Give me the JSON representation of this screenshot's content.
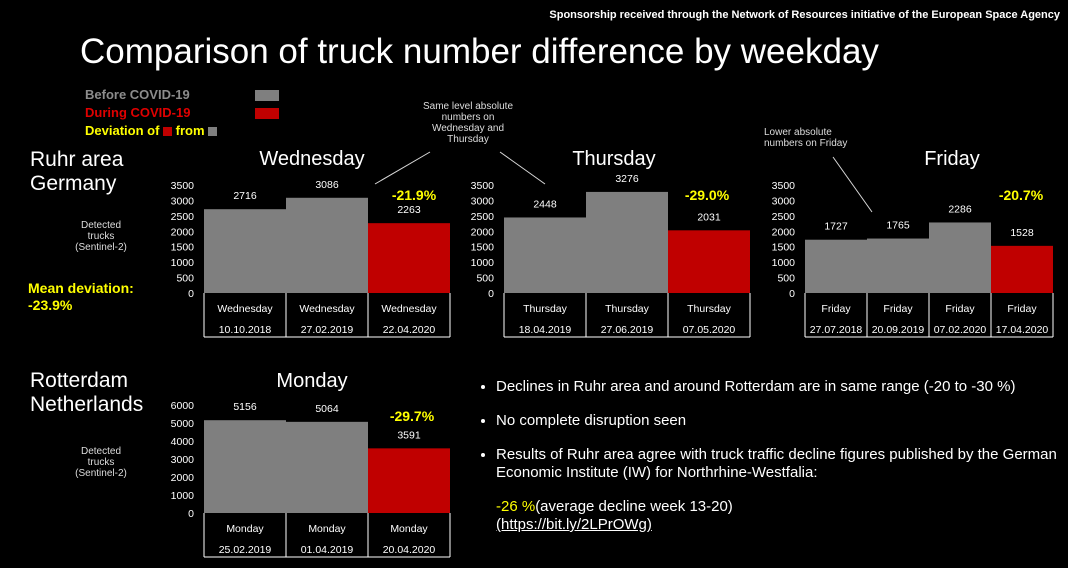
{
  "sponsor_text": "Sponsorship received through the Network of Resources initiative of the European Space Agency",
  "title": "Comparison of truck number difference by weekday",
  "legend": {
    "before_label": "Before COVID-19",
    "during_label": "During COVID-19",
    "deviation_prefix": "Deviation of",
    "deviation_mid": "from",
    "before_color": "#7f7f7f",
    "during_color": "#c00000",
    "deviation_color": "#ffff00"
  },
  "regions": {
    "ruhr": {
      "name_line1": "Ruhr area",
      "name_line2": "Germany",
      "detected_line1": "Detected",
      "detected_line2": "trucks",
      "detected_line3": "(Sentinel-2)",
      "mean_label": "Mean deviation:",
      "mean_value": "-23.9%"
    },
    "rotterdam": {
      "name_line1": "Rotterdam",
      "name_line2": "Netherlands",
      "detected_line1": "Detected",
      "detected_line2": "trucks",
      "detected_line3": "(Sentinel-2)"
    }
  },
  "callouts": {
    "same_level": [
      "Same level absolute",
      "numbers on",
      "Wednesday and",
      "Thursday"
    ],
    "lower_friday": [
      "Lower absolute",
      "numbers on Friday"
    ]
  },
  "bullets": [
    "Declines in Ruhr area and around Rotterdam are in same range (-20 to -30 %)",
    "No complete disruption seen",
    "Results of Ruhr area agree with truck traffic decline figures published by the German Economic Institute (IW) for Northrhine-Westfalia:"
  ],
  "iw_note": {
    "value": "-26 %",
    "text": "(average decline week 13-20)",
    "link": "(https://bit.ly/2LPrOWg)"
  },
  "chart_data": [
    {
      "type": "bar",
      "title": "Wednesday",
      "region": "Ruhr area Germany",
      "categories": [
        "Wednesday|10.10.2018",
        "Wednesday|27.02.2019",
        "Wednesday|22.04.2020"
      ],
      "values": [
        2716,
        3086,
        2263
      ],
      "bar_colors": [
        "#7f7f7f",
        "#7f7f7f",
        "#c00000"
      ],
      "ylim": [
        0,
        3500
      ],
      "yticks": [
        0,
        500,
        1000,
        1500,
        2000,
        2500,
        3000,
        3500
      ],
      "deviation": "-21.9%"
    },
    {
      "type": "bar",
      "title": "Thursday",
      "region": "Ruhr area Germany",
      "categories": [
        "Thursday|18.04.2019",
        "Thursday|27.06.2019",
        "Thursday|07.05.2020"
      ],
      "values": [
        2448,
        3276,
        2031
      ],
      "bar_colors": [
        "#7f7f7f",
        "#7f7f7f",
        "#c00000"
      ],
      "ylim": [
        0,
        3500
      ],
      "yticks": [
        0,
        500,
        1000,
        1500,
        2000,
        2500,
        3000,
        3500
      ],
      "deviation": "-29.0%"
    },
    {
      "type": "bar",
      "title": "Friday",
      "region": "Ruhr area Germany",
      "categories": [
        "Friday|27.07.2018",
        "Friday|20.09.2019",
        "Friday|07.02.2020",
        "Friday|17.04.2020"
      ],
      "values": [
        1727,
        1765,
        2286,
        1528
      ],
      "bar_colors": [
        "#7f7f7f",
        "#7f7f7f",
        "#7f7f7f",
        "#c00000"
      ],
      "ylim": [
        0,
        3500
      ],
      "yticks": [
        0,
        500,
        1000,
        1500,
        2000,
        2500,
        3000,
        3500
      ],
      "deviation": "-20.7%"
    },
    {
      "type": "bar",
      "title": "Monday",
      "region": "Rotterdam Netherlands",
      "categories": [
        "Monday|25.02.2019",
        "Monday|01.04.2019",
        "Monday|20.04.2020"
      ],
      "values": [
        5156,
        5064,
        3591
      ],
      "bar_colors": [
        "#7f7f7f",
        "#7f7f7f",
        "#c00000"
      ],
      "ylim": [
        0,
        6000
      ],
      "yticks": [
        0,
        1000,
        2000,
        3000,
        4000,
        5000,
        6000
      ],
      "deviation": "-29.7%"
    }
  ]
}
